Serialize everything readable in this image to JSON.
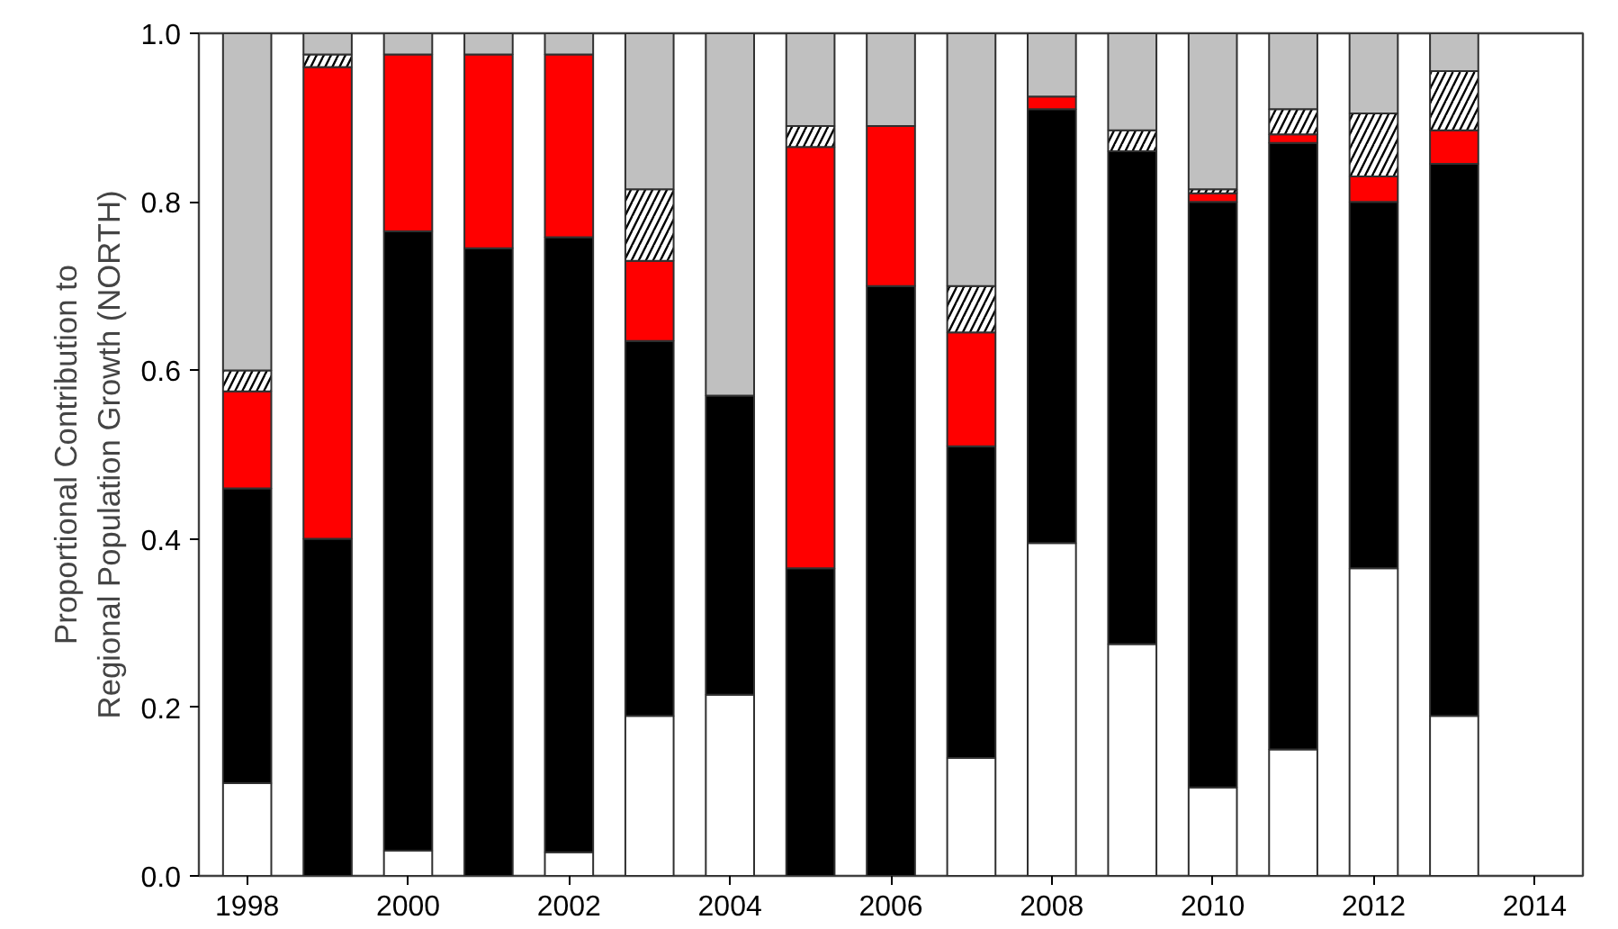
{
  "chart_data": {
    "type": "bar",
    "stacked": true,
    "ylabel": "Proportional Contribution to\nRegional Population Growth (NORTH)",
    "x": [
      1998,
      1999,
      2000,
      2001,
      2002,
      2003,
      2004,
      2005,
      2006,
      2007,
      2008,
      2009,
      2010,
      2011,
      2012,
      2013
    ],
    "xlim": [
      1997.4,
      2014.6
    ],
    "xticks": [
      1998,
      2000,
      2002,
      2004,
      2006,
      2008,
      2010,
      2012,
      2014
    ],
    "ylim": [
      0,
      1
    ],
    "yticks": [
      {
        "value": 0,
        "label": "0.0"
      },
      0.2,
      0.4,
      0.6,
      0.8,
      {
        "value": 1,
        "label": "1.0"
      }
    ],
    "grid": false,
    "series": [
      {
        "color": "#ffffff",
        "values": [
          0.11,
          0,
          0.03,
          0,
          0.028,
          0.19,
          0.215,
          0,
          0,
          0.14,
          0.395,
          0.275,
          0.105,
          0.15,
          0.365,
          0.19
        ]
      },
      {
        "color": "#000000",
        "values": [
          0.35,
          0.4,
          0.735,
          0.745,
          0.73,
          0.445,
          0.355,
          0.365,
          0.7,
          0.37,
          0.515,
          0.585,
          0.695,
          0.72,
          0.435,
          0.655
        ]
      },
      {
        "color": "#ff0000",
        "values": [
          0.115,
          0.56,
          0.21,
          0.23,
          0.217,
          0.095,
          0,
          0.5,
          0.19,
          0.135,
          0.015,
          0,
          0.01,
          0.01,
          0.03,
          0.04
        ]
      },
      {
        "color": "#ffffff",
        "values": [
          0.025,
          0.015,
          0,
          0,
          0,
          0.085,
          0,
          0.025,
          0,
          0.055,
          0,
          0.025,
          0.005,
          0.03,
          0.075,
          0.07
        ]
      },
      {
        "color": "#c0c0c0",
        "values": [
          0.4,
          0.025,
          0.025,
          0.025,
          0.025,
          0.185,
          0.43,
          0.11,
          0.11,
          0.3,
          0.075,
          0.115,
          0.185,
          0.09,
          0.095,
          0.045
        ]
      }
    ]
  }
}
